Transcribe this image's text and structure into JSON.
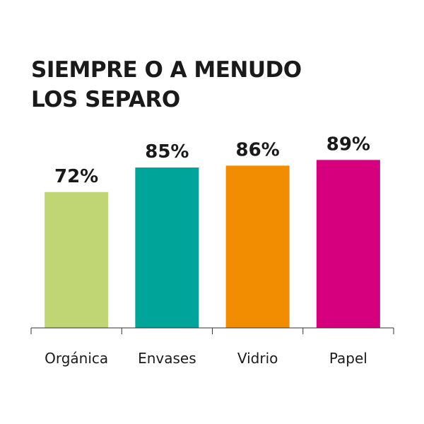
{
  "chart_data": {
    "type": "bar",
    "title_lines": [
      "SIEMPRE O A MENUDO",
      "LOS SEPARO"
    ],
    "categories": [
      "Orgánica",
      "Envases",
      "Vidrio",
      "Papel"
    ],
    "values": [
      72,
      85,
      86,
      89
    ],
    "value_labels": [
      "72%",
      "85%",
      "86%",
      "89%"
    ],
    "colors": [
      "#c0d674",
      "#00a499",
      "#f28c00",
      "#d6007f"
    ],
    "ylim": [
      0,
      100
    ],
    "grid": false,
    "legend": "none"
  }
}
